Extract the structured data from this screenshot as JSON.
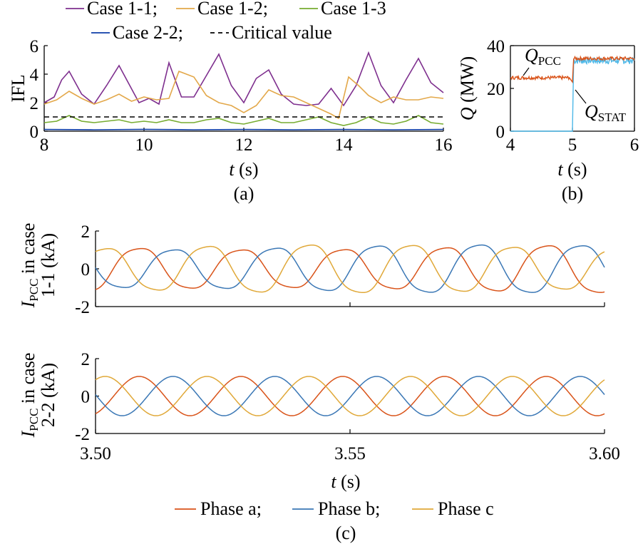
{
  "chart_data": [
    {
      "id": "a",
      "type": "line",
      "caption": "(a)",
      "xlabel_var": "t",
      "xlabel_unit": " (s)",
      "ylabel": "IFL",
      "xlim": [
        8,
        16
      ],
      "ylim": [
        0,
        6
      ],
      "xticks": [
        8,
        10,
        12,
        14,
        16
      ],
      "yticks": [
        0,
        2,
        4,
        6
      ],
      "legend_position": "top",
      "series": [
        {
          "name": "Case 1-1;",
          "color": "#7e2f8e",
          "dashed": false,
          "x": [
            8,
            8.2,
            8.35,
            8.5,
            8.75,
            9.0,
            9.25,
            9.5,
            9.7,
            9.9,
            10.1,
            10.3,
            10.5,
            10.75,
            11.0,
            11.25,
            11.5,
            11.75,
            12.0,
            12.25,
            12.5,
            12.75,
            13.0,
            13.25,
            13.5,
            13.75,
            14.0,
            14.25,
            14.5,
            14.75,
            15.0,
            15.25,
            15.5,
            15.75,
            16.0
          ],
          "y": [
            2.0,
            2.4,
            3.6,
            4.2,
            2.6,
            1.9,
            3.2,
            4.6,
            3.3,
            2.0,
            2.3,
            1.9,
            4.8,
            2.4,
            2.4,
            3.9,
            5.4,
            3.2,
            2.0,
            3.7,
            4.3,
            2.6,
            1.9,
            1.8,
            1.9,
            3.0,
            1.8,
            3.2,
            5.5,
            3.2,
            2.0,
            3.6,
            5.1,
            3.4,
            2.7
          ]
        },
        {
          "name": "Case 1-2;",
          "color": "#e3a84a",
          "dashed": false,
          "x": [
            8,
            8.25,
            8.5,
            8.75,
            9.0,
            9.25,
            9.5,
            9.75,
            10.0,
            10.25,
            10.5,
            10.7,
            11.0,
            11.25,
            11.5,
            11.75,
            12.0,
            12.25,
            12.5,
            12.75,
            13.0,
            13.25,
            13.5,
            13.75,
            13.9,
            14.1,
            14.3,
            14.5,
            14.75,
            15.0,
            15.25,
            15.5,
            15.75,
            16.0
          ],
          "y": [
            1.9,
            2.2,
            2.8,
            2.3,
            1.9,
            2.2,
            2.6,
            2.1,
            2.4,
            2.2,
            2.3,
            4.2,
            3.8,
            2.5,
            2.0,
            1.8,
            1.3,
            1.8,
            2.9,
            2.5,
            2.4,
            2.0,
            1.6,
            1.2,
            0.9,
            3.8,
            3.2,
            2.5,
            2.0,
            2.4,
            2.2,
            2.2,
            2.4,
            2.3
          ]
        },
        {
          "name": "Case 1-3",
          "color": "#77ac30",
          "dashed": false,
          "x": [
            8,
            8.25,
            8.5,
            8.75,
            9.0,
            9.25,
            9.5,
            9.75,
            10.0,
            10.25,
            10.5,
            10.75,
            11.0,
            11.25,
            11.5,
            11.75,
            12.0,
            12.25,
            12.5,
            12.75,
            13.0,
            13.25,
            13.5,
            13.75,
            14.0,
            14.25,
            14.5,
            14.75,
            15.0,
            15.25,
            15.5,
            15.75,
            16.0
          ],
          "y": [
            0.6,
            0.7,
            1.1,
            0.7,
            0.6,
            0.7,
            0.8,
            0.6,
            0.7,
            0.6,
            0.8,
            0.6,
            0.6,
            0.8,
            0.9,
            0.6,
            0.5,
            0.7,
            0.9,
            0.6,
            0.6,
            0.8,
            1.0,
            0.6,
            0.4,
            0.6,
            1.0,
            0.6,
            0.5,
            0.7,
            1.1,
            0.6,
            0.5
          ]
        },
        {
          "name": "Case 2-2;",
          "color": "#0e3da8",
          "dashed": false,
          "x": [
            8,
            9,
            10,
            11,
            12,
            13,
            14,
            15,
            16
          ],
          "y": [
            0.12,
            0.1,
            0.13,
            0.1,
            0.12,
            0.1,
            0.12,
            0.1,
            0.12
          ]
        },
        {
          "name": "Critical value",
          "color": "#000000",
          "dashed": true,
          "x": [
            8,
            16
          ],
          "y": [
            1,
            1
          ]
        }
      ]
    },
    {
      "id": "b",
      "type": "line",
      "caption": "(b)",
      "xlabel_var": "t",
      "xlabel_unit": " (s)",
      "ylabel_var": "Q",
      "ylabel_unit": " (MW)",
      "xlim": [
        4,
        6
      ],
      "ylim": [
        0,
        40
      ],
      "xticks": [
        4,
        5,
        6
      ],
      "yticks": [
        0,
        20,
        40
      ],
      "annotations": [
        {
          "main": "Q",
          "sub": "PCC"
        },
        {
          "main": "Q",
          "sub": "STAT"
        }
      ],
      "series": [
        {
          "label": "Q_PCC",
          "color": "#d95319",
          "x": [
            4,
            4.95,
            5.0,
            5.02,
            6.0
          ],
          "y": [
            25,
            25,
            23,
            34,
            34
          ]
        },
        {
          "label": "Q_STAT",
          "color": "#4db8e8",
          "x": [
            4,
            4.99,
            5.0,
            5.02,
            6.0
          ],
          "y": [
            0,
            0,
            0,
            33,
            33
          ]
        }
      ]
    },
    {
      "id": "c",
      "type": "line",
      "caption": "(c)",
      "xlabel_var": "t",
      "xlabel_unit": " (s)",
      "xlim": [
        3.5,
        3.6
      ],
      "xticks": [
        "3.50",
        "3.55",
        "3.60"
      ],
      "legend_position": "bottom",
      "series_names": [
        "Phase a;",
        "Phase b;",
        "Phase c"
      ],
      "series_colors": [
        "#d95319",
        "#3a77b5",
        "#e0a838"
      ],
      "frequency_hz": 50,
      "subplots": [
        {
          "id": "c1",
          "ylabel_main": "I",
          "ylabel_sub": "PCC",
          "ylabel_rest": " in case",
          "ylabel_line2": "1-1 (kA)",
          "ylim": [
            -2,
            2
          ],
          "yticks": [
            2,
            0,
            -2
          ],
          "amplitude_ka": 1.2,
          "distorted": true
        },
        {
          "id": "c2",
          "ylabel_main": "I",
          "ylabel_sub": "PCC",
          "ylabel_rest": " in case",
          "ylabel_line2": "2-2 (kA)",
          "ylim": [
            -2,
            2
          ],
          "yticks": [
            2,
            0,
            -2
          ],
          "amplitude_ka": 1.05,
          "distorted": false
        }
      ]
    }
  ]
}
